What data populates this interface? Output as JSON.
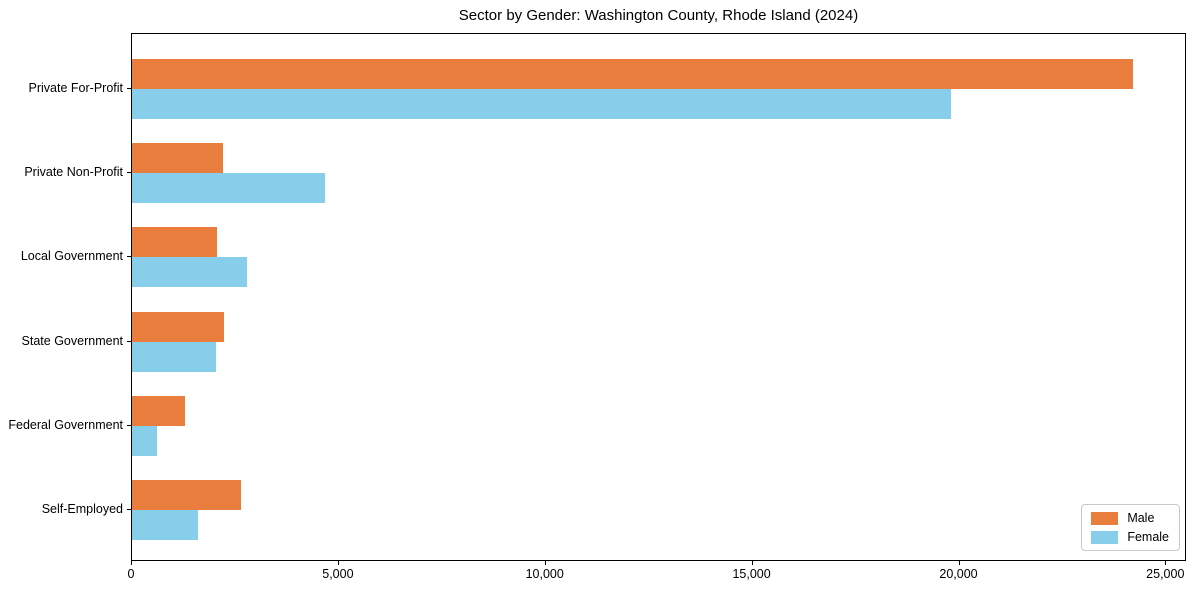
{
  "figure": {
    "background": "#ffffff",
    "plot_border_color": "#000000"
  },
  "chart_data": {
    "type": "bar",
    "orientation": "horizontal",
    "title": "Sector by Gender: Washington County, Rhode Island (2024)",
    "xlabel": "",
    "ylabel": "",
    "categories": [
      "Private For-Profit",
      "Private Non-Profit",
      "Local Government",
      "State Government",
      "Federal Government",
      "Self-Employed"
    ],
    "series": [
      {
        "name": "Male",
        "color": "#e87d3e",
        "values": [
          24200,
          2200,
          2050,
          2230,
          1280,
          2630
        ]
      },
      {
        "name": "Female",
        "color": "#87ceeb",
        "values": [
          19790,
          4660,
          2780,
          2030,
          600,
          1590
        ]
      }
    ],
    "xlim": [
      0,
      25500
    ],
    "xticks": [
      {
        "value": 0,
        "label": "0"
      },
      {
        "value": 5000,
        "label": "5,000"
      },
      {
        "value": 10000,
        "label": "10,000"
      },
      {
        "value": 15000,
        "label": "15,000"
      },
      {
        "value": 20000,
        "label": "20,000"
      },
      {
        "value": 25000,
        "label": "25,000"
      }
    ],
    "grid": false,
    "legend": {
      "position": "lower right",
      "entries": [
        {
          "label": "Male",
          "color": "#e87d3e"
        },
        {
          "label": "Female",
          "color": "#87ceeb"
        }
      ]
    }
  }
}
